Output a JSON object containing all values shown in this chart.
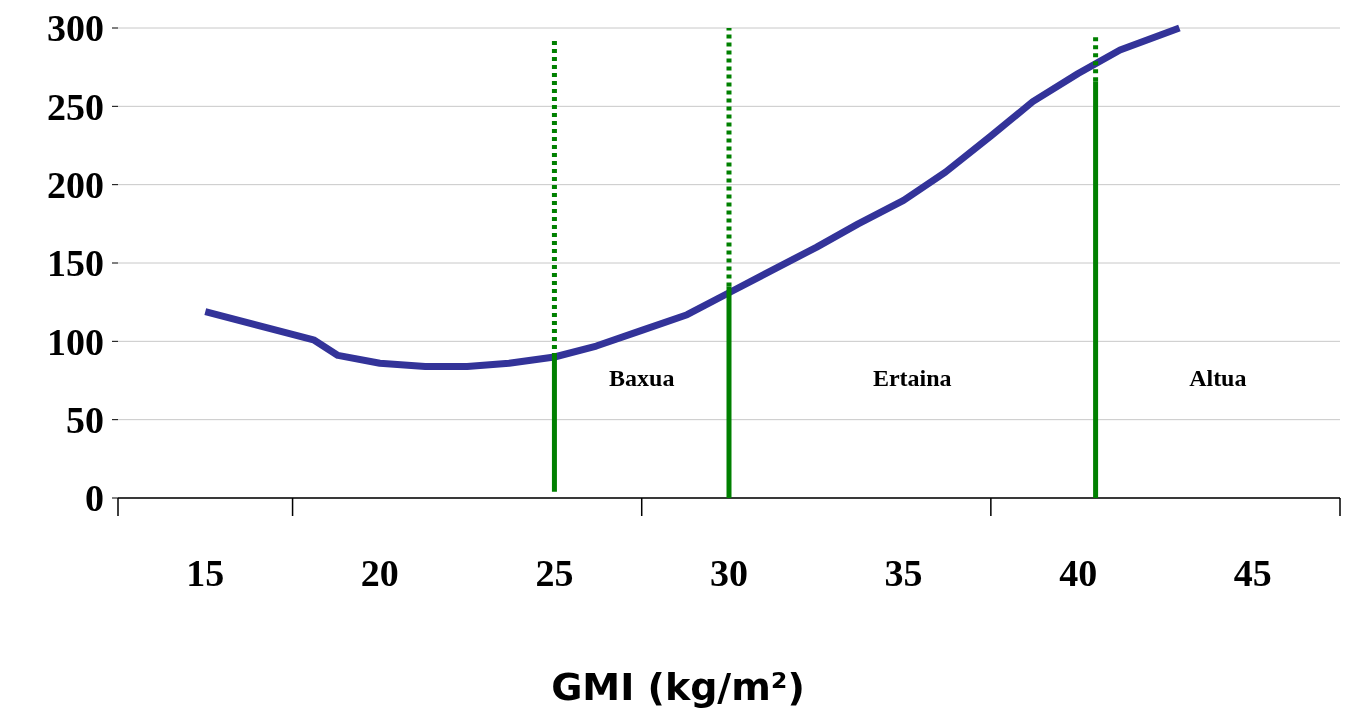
{
  "chart_data": {
    "type": "line",
    "xlabel": "GMI (kg/m²)",
    "xlim": [
      12.5,
      47.5
    ],
    "xticks": [
      15,
      20,
      25,
      30,
      35,
      40,
      45
    ],
    "ylim": [
      0,
      300
    ],
    "yticks": [
      0,
      50,
      100,
      150,
      200,
      250,
      300
    ],
    "grid": "y",
    "series": [
      {
        "color": "#333399",
        "x": [
          15,
          18.1,
          18.8,
          20,
          21.3,
          22.5,
          23.7,
          25,
          26.2,
          27.5,
          28.8,
          30,
          31.2,
          32.5,
          33.7,
          35,
          36.2,
          37.5,
          38.7,
          40,
          41.2,
          42.9
        ],
        "values": [
          119,
          101,
          91,
          86,
          84,
          84,
          86,
          90,
          97,
          107,
          117,
          131,
          145,
          160,
          175,
          190,
          208,
          231,
          253,
          271,
          286,
          300
        ]
      },
      {
        "color": "#008000",
        "x": [
          25,
          25
        ],
        "values": [
          4,
          90
        ],
        "line_style": "solid"
      },
      {
        "color": "#008000",
        "x": [
          25,
          25
        ],
        "values": [
          90,
          292
        ],
        "line_style": "dotted"
      },
      {
        "color": "#008000",
        "x": [
          30,
          30
        ],
        "values": [
          0,
          135
        ],
        "line_style": "solid"
      },
      {
        "color": "#008000",
        "x": [
          30,
          30
        ],
        "values": [
          135,
          300
        ],
        "line_style": "dotted"
      },
      {
        "color": "#008000",
        "x": [
          40.5,
          40.5
        ],
        "values": [
          0,
          266
        ],
        "line_style": "solid"
      },
      {
        "color": "#008000",
        "x": [
          40.5,
          40.5
        ],
        "values": [
          266,
          295
        ],
        "line_style": "dotted"
      }
    ],
    "annotations": [
      "Baxua",
      "Ertaina",
      "Altua"
    ]
  }
}
